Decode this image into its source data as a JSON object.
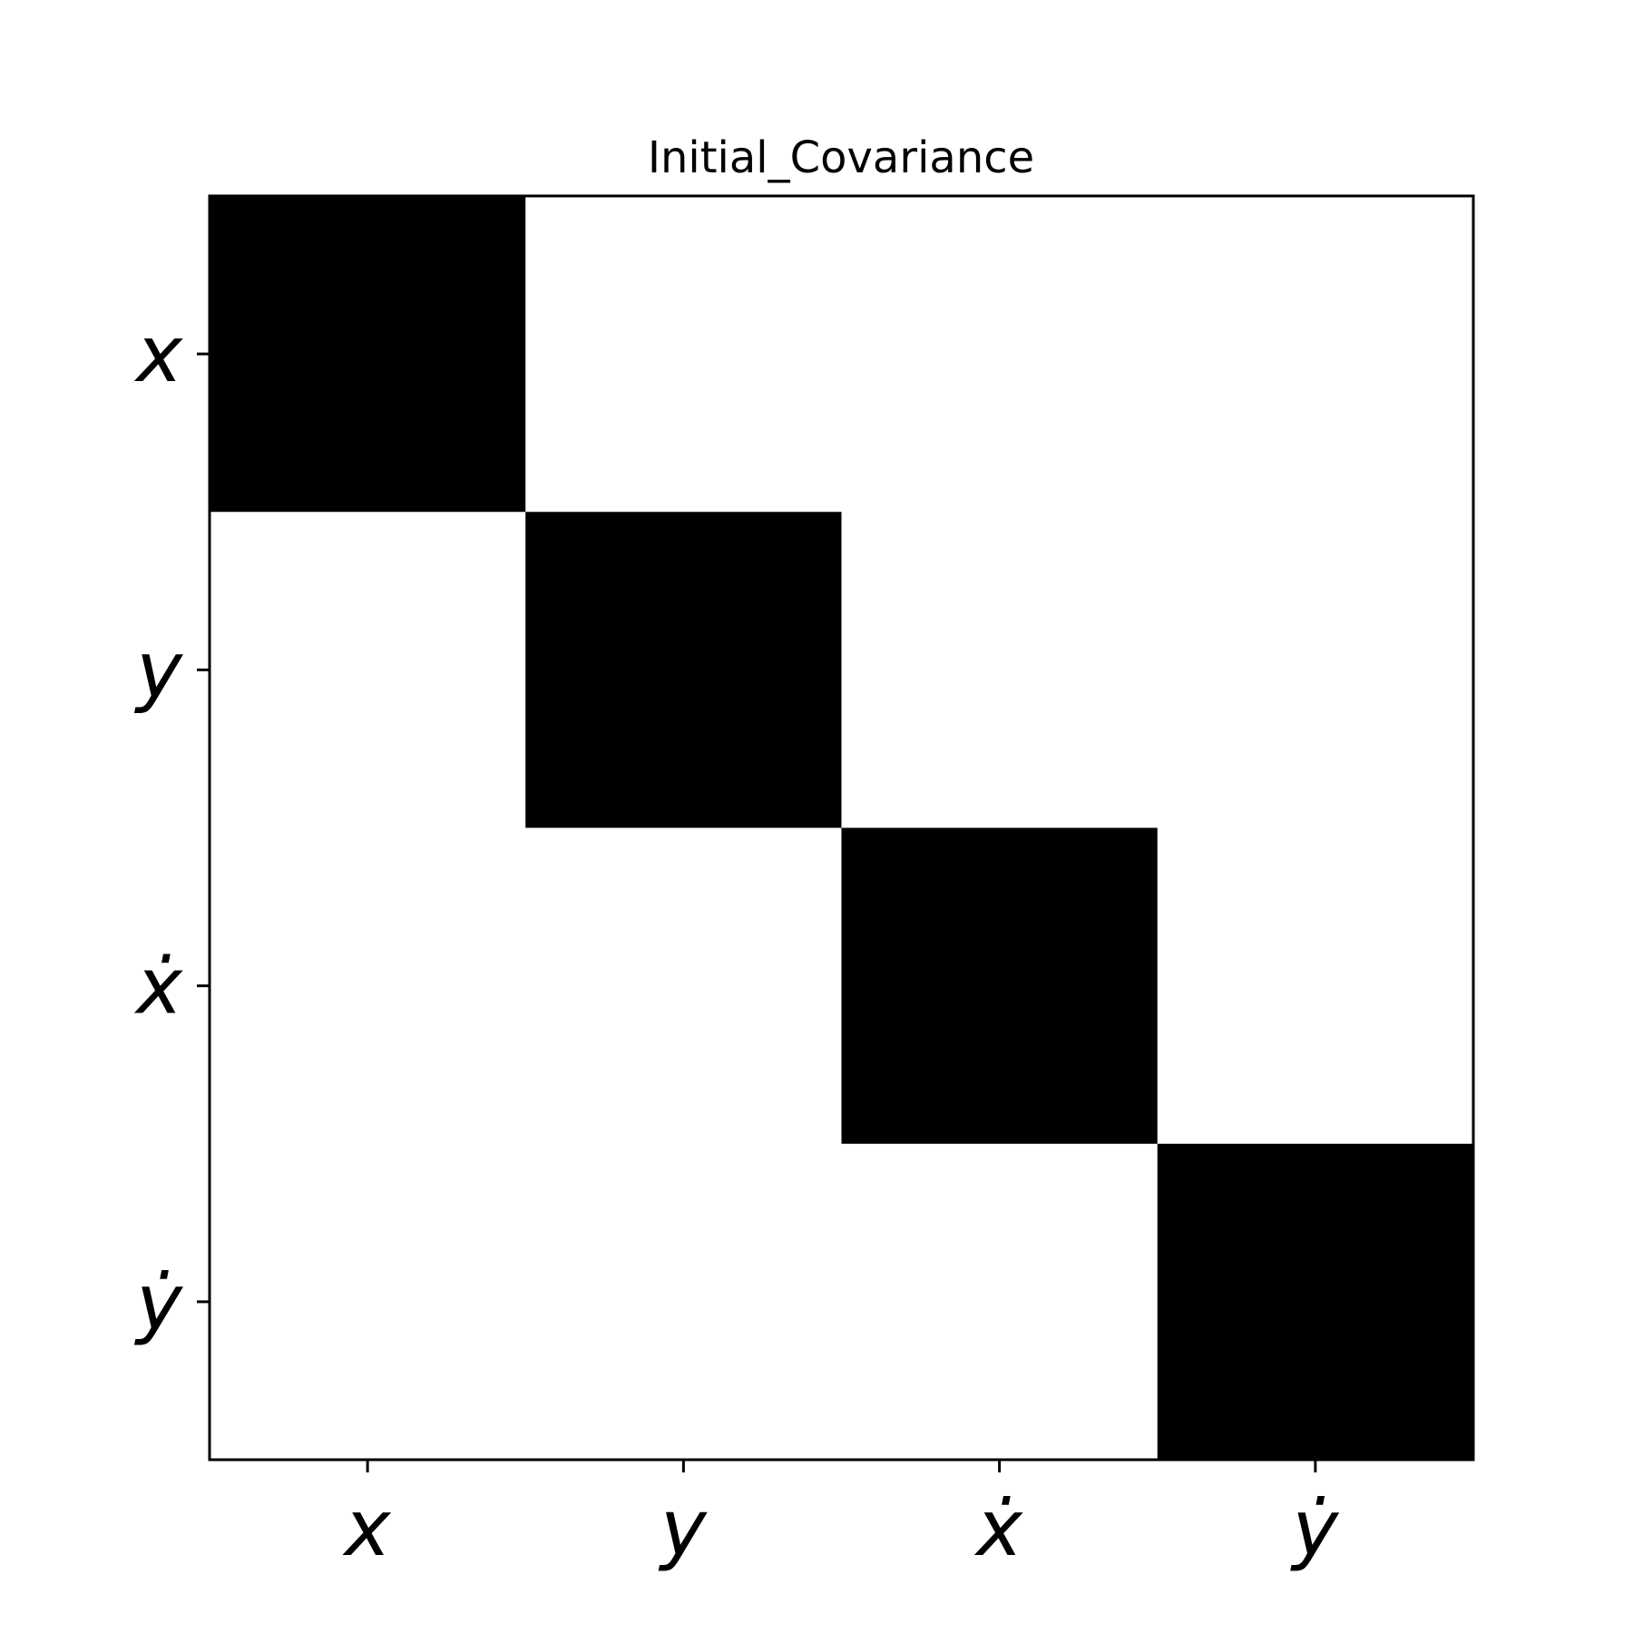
{
  "chart_data": {
    "type": "heatmap",
    "title": "Initial_Covariance",
    "xlabel": "",
    "ylabel": "",
    "x_tick_labels": [
      "x",
      "y",
      "ẋ",
      "ẏ"
    ],
    "y_tick_labels": [
      "x",
      "y",
      "ẋ",
      "ẏ"
    ],
    "matrix": [
      [
        1,
        0,
        0,
        0
      ],
      [
        0,
        1,
        0,
        0
      ],
      [
        0,
        0,
        1,
        0
      ],
      [
        0,
        0,
        0,
        1
      ]
    ],
    "colormap": "binary",
    "colors": {
      "high": "#000000",
      "low": "#ffffff"
    },
    "grid": false,
    "legend": "none"
  }
}
